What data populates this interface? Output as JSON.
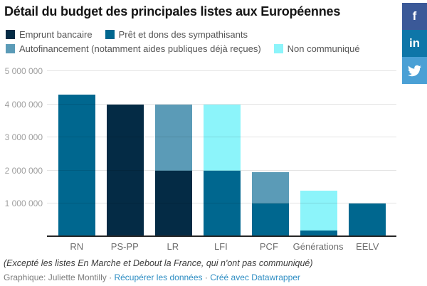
{
  "header": {
    "title": "Détail du budget des principales listes aux Européennes"
  },
  "social_buttons": [
    {
      "name": "facebook",
      "label": "f",
      "color": "#3b5998"
    },
    {
      "name": "linkedin",
      "label": "in",
      "color": "#0e76a8"
    },
    {
      "name": "twitter",
      "label": "",
      "color": "#4aa0d5"
    }
  ],
  "chart_data": {
    "type": "bar",
    "stacked": true,
    "title": "Détail du budget des principales listes aux Européennes",
    "categories": [
      "RN",
      "PS-PP",
      "LR",
      "LFI",
      "PCF",
      "Générations",
      "EELV"
    ],
    "series": [
      {
        "name": "Emprunt bancaire",
        "color": "#042b45",
        "values": [
          0,
          4000000,
          2000000,
          0,
          0,
          0,
          0
        ]
      },
      {
        "name": "Prêt et dons des sympathisants",
        "color": "#00678f",
        "values": [
          4300000,
          0,
          0,
          2000000,
          1000000,
          200000,
          1000000
        ]
      },
      {
        "name": "Autofinancement (notamment aides publiques déjà reçues)",
        "color": "#5b9bb7",
        "values": [
          0,
          0,
          2000000,
          0,
          950000,
          0,
          0
        ]
      },
      {
        "name": "Non communiqué",
        "color": "#8cf4fa",
        "values": [
          0,
          0,
          0,
          2000000,
          0,
          1200000,
          0
        ]
      }
    ],
    "xlabel": "",
    "ylabel": "",
    "ylim": [
      0,
      5000000
    ],
    "y_ticks": [
      {
        "value": 5000000,
        "label": "5 000 000"
      },
      {
        "value": 4000000,
        "label": "4 000 000"
      },
      {
        "value": 3000000,
        "label": "3 000 000"
      },
      {
        "value": 2000000,
        "label": "2 000 000"
      },
      {
        "value": 1000000,
        "label": "1 000 000"
      }
    ],
    "grid": "on",
    "legend_position": "top",
    "legend_rows": [
      [
        0,
        1
      ],
      [
        2,
        3
      ]
    ]
  },
  "footer": {
    "note": "(Excepté les listes En Marche et Debout la France, qui n'ont pas communiqué)",
    "credit_prefix": "Graphique: Juliette Montilly",
    "separator": "·",
    "links": [
      {
        "label": "Récupérer les données"
      },
      {
        "label": "Créé avec Datawrapper"
      }
    ],
    "link_color": "#2d8dc3"
  }
}
